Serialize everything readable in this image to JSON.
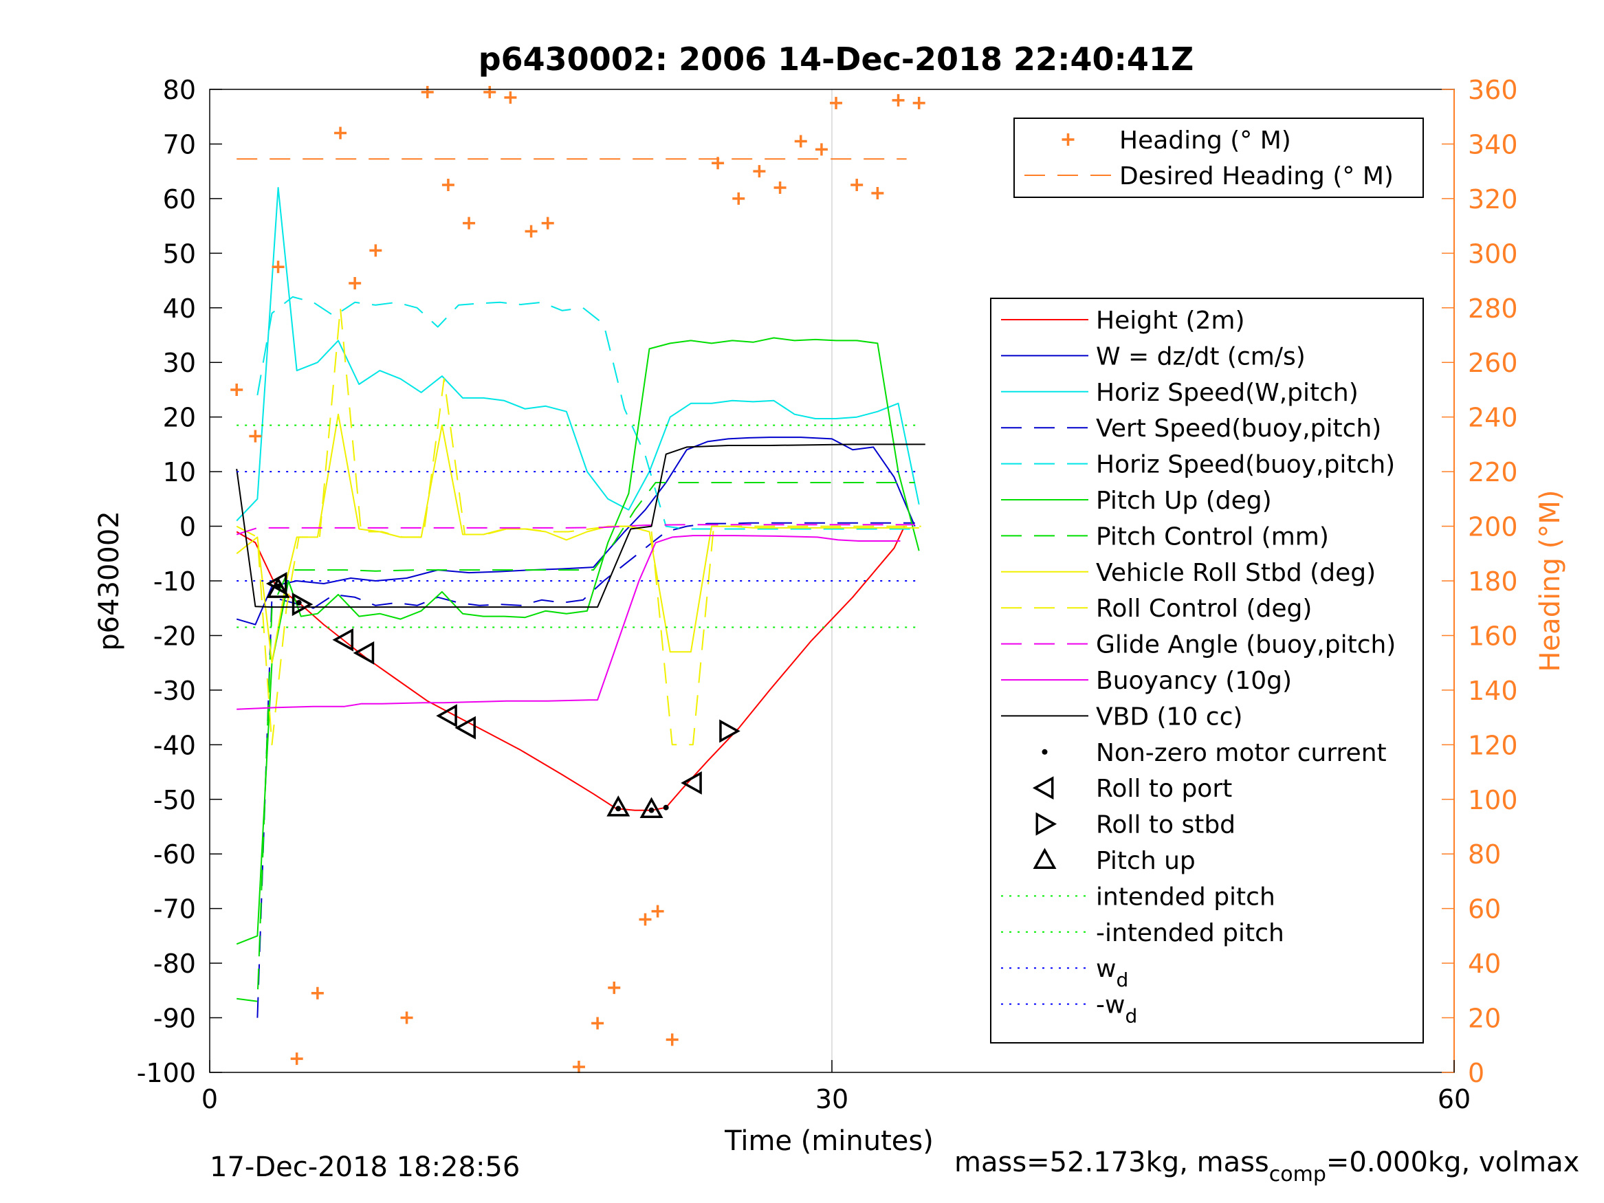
{
  "chart_data": {
    "type": "line",
    "title": "p6430002:  2006 14-Dec-2018 22:40:41Z",
    "xlabel": "Time (minutes)",
    "ylabel": "p6430002",
    "y2label": "Heading (°M)",
    "xlim": [
      0,
      60
    ],
    "ylim": [
      -100,
      80
    ],
    "y2lim": [
      0,
      360
    ],
    "xticks": [
      0,
      30,
      60
    ],
    "yticks": [
      -100,
      -90,
      -80,
      -70,
      -60,
      -50,
      -40,
      -30,
      -20,
      -10,
      0,
      10,
      20,
      30,
      40,
      50,
      60,
      70,
      80
    ],
    "y2ticks": [
      0,
      20,
      40,
      60,
      80,
      100,
      120,
      140,
      160,
      180,
      200,
      220,
      240,
      260,
      280,
      300,
      320,
      340,
      360
    ],
    "grid": "x",
    "colors": {
      "axis2": "#ff7f27",
      "heading": "#ff7f27"
    },
    "legend_top": {
      "placement": "top-right",
      "entries": [
        {
          "label": "Heading (° M)",
          "color": "#ff7f27",
          "style": "plus"
        },
        {
          "label": "Desired Heading (° M)",
          "color": "#ff7f27",
          "style": "dash"
        }
      ]
    },
    "legend_main": {
      "placement": "right",
      "entries": [
        {
          "label": "Height (2m)",
          "color": "#ff0000",
          "style": "solid"
        },
        {
          "label": "W = dz/dt (cm/s)",
          "color": "#0000cc",
          "style": "solid"
        },
        {
          "label": "Horiz Speed(W,pitch)",
          "color": "#00e5e5",
          "style": "solid"
        },
        {
          "label": "Vert Speed(buoy,pitch)",
          "color": "#0000cc",
          "style": "dash"
        },
        {
          "label": "Horiz Speed(buoy,pitch)",
          "color": "#00e5e5",
          "style": "dash"
        },
        {
          "label": "Pitch Up (deg)",
          "color": "#00dd00",
          "style": "solid"
        },
        {
          "label": "Pitch Control (mm)",
          "color": "#00dd00",
          "style": "dash"
        },
        {
          "label": "Vehicle Roll Stbd (deg)",
          "color": "#f0f000",
          "style": "solid"
        },
        {
          "label": "Roll Control (deg)",
          "color": "#f0f000",
          "style": "dash"
        },
        {
          "label": "Glide Angle (buoy,pitch)",
          "color": "#ee00ee",
          "style": "dash"
        },
        {
          "label": "Buoyancy (10g)",
          "color": "#ee00ee",
          "style": "solid"
        },
        {
          "label": "VBD (10 cc)",
          "color": "#000000",
          "style": "solid"
        },
        {
          "label": "Non-zero motor current",
          "color": "#000000",
          "style": "dot"
        },
        {
          "label": "Roll to port",
          "color": "#000000",
          "style": "tri-left"
        },
        {
          "label": "Roll to stbd",
          "color": "#000000",
          "style": "tri-right"
        },
        {
          "label": "Pitch up",
          "color": "#000000",
          "style": "tri-up"
        },
        {
          "label": "intended pitch",
          "color": "#00ee00",
          "style": "dotted"
        },
        {
          "label": "-intended pitch",
          "color": "#00ee00",
          "style": "dotted"
        },
        {
          "label": "w",
          "sub": "d",
          "color": "#0000ff",
          "style": "dotted"
        },
        {
          "label": "-w",
          "sub": "d",
          "color": "#0000ff",
          "style": "dotted"
        }
      ]
    },
    "series": [
      {
        "name": "Height (2m)",
        "axis": "left",
        "color": "#ff0000",
        "style": "solid",
        "x": [
          1.3,
          2.2,
          3.2,
          4.3,
          5.5,
          6.5,
          7.5,
          9,
          10.5,
          12,
          13.5,
          15,
          17,
          18.5,
          19.6,
          20.5,
          21.3,
          22,
          22.8,
          24,
          25.5,
          27,
          29,
          31,
          33,
          33.5
        ],
        "y": [
          -1,
          -3,
          -11,
          -14,
          -18,
          -21,
          -24,
          -28,
          -32,
          -35,
          -38,
          -41,
          -45.5,
          -49,
          -51.7,
          -52,
          -52,
          -51.5,
          -48,
          -43,
          -37,
          -30,
          -21,
          -13,
          -4,
          0
        ]
      },
      {
        "name": "W = dz/dt (cm/s)",
        "axis": "left",
        "color": "#0000cc",
        "style": "solid",
        "x": [
          1.3,
          2.2,
          3.0,
          4.2,
          5.5,
          6.8,
          8.0,
          9.5,
          11.0,
          12.5,
          14.0,
          15.5,
          17.0,
          18.5,
          20.0,
          21.0,
          22.0,
          23.0,
          24.0,
          25.0,
          26.0,
          27.0,
          28.5,
          30.0,
          31.0,
          32.0,
          33.0,
          34.0
        ],
        "y": [
          -17,
          -18,
          -11,
          -10,
          -10.5,
          -9.5,
          -10,
          -9.5,
          -8,
          -8.5,
          -8.3,
          -8,
          -7.8,
          -7.5,
          -1,
          3,
          8,
          14,
          15.5,
          16,
          16.2,
          16.3,
          16.3,
          16,
          14,
          14.5,
          9,
          0
        ]
      },
      {
        "name": "Horiz Speed(W,pitch)",
        "axis": "left",
        "color": "#00e5e5",
        "style": "solid",
        "x": [
          1.3,
          2.3,
          3.3,
          4.2,
          5.2,
          6.2,
          7.2,
          8.2,
          9.2,
          10.2,
          11.2,
          12.2,
          13.2,
          14.2,
          15.2,
          16.2,
          17.2,
          18.2,
          19.2,
          20.2,
          21.2,
          22.2,
          23.2,
          24.2,
          25.2,
          26.2,
          27.2,
          28.2,
          29.2,
          30.2,
          31.2,
          32.2,
          33.2,
          34.2
        ],
        "y": [
          1,
          5,
          62,
          28.5,
          30,
          34,
          26,
          28.5,
          27,
          24.5,
          27.5,
          23.5,
          23.5,
          23,
          21.5,
          22,
          21,
          10,
          5,
          3,
          10,
          20,
          22.5,
          22.5,
          23,
          22.8,
          23,
          20.5,
          19.7,
          19.7,
          20,
          21,
          22.5,
          4
        ]
      },
      {
        "name": "Vert Speed(buoy,pitch)",
        "axis": "left",
        "color": "#0000cc",
        "style": "dash",
        "x": [
          2.3,
          3.0,
          4.0,
          5.0,
          6.0,
          7.0,
          8.0,
          9.0,
          10.0,
          11.0,
          12.0,
          13.0,
          14.0,
          15.0,
          16.0,
          17.0,
          18.0,
          19.0,
          20.0,
          21.0,
          22.0,
          23.0,
          24.0,
          25.0,
          26.0,
          27.0,
          28.0,
          30.0,
          32.0,
          34.0
        ],
        "y": [
          -90,
          -13,
          -14,
          -15,
          -12.5,
          -13,
          -14.5,
          -14,
          -14.5,
          -13,
          -14,
          -14.5,
          -14.3,
          -14.5,
          -13.5,
          -14,
          -13.5,
          -10,
          -7,
          -4,
          -1,
          0,
          0.5,
          0.5,
          0.6,
          0.6,
          0.6,
          0.6,
          0.6,
          0.6
        ]
      },
      {
        "name": "Horiz Speed(buoy,pitch)",
        "axis": "left",
        "color": "#00e5e5",
        "style": "dash",
        "x": [
          2.3,
          3.0,
          4.0,
          5.0,
          6.0,
          7.0,
          8.0,
          9.0,
          10.0,
          11.0,
          12.0,
          13.0,
          14.0,
          15.0,
          16.0,
          17.0,
          18.0,
          19.0,
          20.0,
          21.0,
          22.0,
          23.0,
          24.0,
          25.0,
          26.0,
          27.0,
          28.0,
          30.0,
          32.0,
          34.0
        ],
        "y": [
          24,
          39,
          42,
          41,
          38.5,
          41,
          40.5,
          41,
          40,
          36.5,
          40.5,
          40.8,
          41,
          40.6,
          41,
          39.5,
          40,
          37,
          21.5,
          13,
          0,
          -0.5,
          -0.5,
          -0.5,
          -0.5,
          -0.5,
          -0.5,
          -0.5,
          -0.5,
          -0.5
        ]
      },
      {
        "name": "Pitch Up (deg)",
        "axis": "left",
        "color": "#00dd00",
        "style": "solid",
        "x": [
          1.3,
          2.3,
          3.0,
          3.8,
          4.4,
          5.2,
          6.2,
          7.2,
          8.2,
          9.2,
          10.2,
          11.2,
          12.2,
          13.2,
          14.2,
          15.2,
          16.2,
          17.2,
          18.2,
          19.2,
          20.2,
          21.2,
          22.2,
          23.2,
          24.2,
          25.2,
          26.2,
          27.2,
          28.2,
          29.2,
          30.2,
          31.2,
          32.2,
          33.2,
          34.2
        ],
        "y": [
          -76.5,
          -75,
          -25,
          -10,
          -16.5,
          -16,
          -12.5,
          -16.5,
          -16,
          -17,
          -15.5,
          -12,
          -16,
          -16.5,
          -16.5,
          -16.7,
          -15.5,
          -16,
          -15.5,
          -3,
          6,
          32.5,
          33.5,
          34,
          33.5,
          34,
          33.7,
          34.5,
          34,
          34.2,
          34,
          34,
          33.5,
          10,
          -4.5
        ]
      },
      {
        "name": "Pitch Control (mm)",
        "axis": "left",
        "color": "#00dd00",
        "style": "dash",
        "x": [
          1.3,
          2.3,
          3.0,
          3.8,
          5.0,
          6.5,
          8.0,
          10.0,
          12.0,
          14.0,
          16.0,
          17.5,
          18.5,
          19.5,
          20.5,
          21.5,
          23.0,
          25.0,
          27.0,
          29.0,
          31.0,
          33.0,
          34.0
        ],
        "y": [
          -86.5,
          -87,
          -15,
          -8,
          -8,
          -8,
          -8.2,
          -8,
          -8,
          -8,
          -8,
          -8,
          -8,
          -3,
          3,
          8,
          8,
          8,
          8,
          8,
          8,
          8,
          8
        ]
      },
      {
        "name": "Vehicle Roll Stbd (deg)",
        "axis": "left",
        "color": "#f0f000",
        "style": "solid",
        "x": [
          1.3,
          2.3,
          3.0,
          3.7,
          4.2,
          5.2,
          6.2,
          7.2,
          8.2,
          9.2,
          10.2,
          11.2,
          12.2,
          13.2,
          14.2,
          15.2,
          16.2,
          17.2,
          18.2,
          19.2,
          20.2,
          21.2,
          22.2,
          23.2,
          24.2,
          25.2,
          26.2,
          28.2,
          30.2,
          32.2,
          34.2
        ],
        "y": [
          -5,
          -2,
          -25,
          -10,
          -2,
          -2,
          20.5,
          -0.5,
          -1,
          -2,
          -2,
          18.5,
          -1.5,
          -1.5,
          -0.5,
          -0.5,
          -1,
          -2.5,
          -1,
          0,
          0,
          -1,
          -23,
          -23,
          0,
          0,
          -0.3,
          -0.3,
          -0.3,
          -0.3,
          -0.3
        ]
      },
      {
        "name": "Roll Control (deg)",
        "axis": "left",
        "color": "#f0f000",
        "style": "dash",
        "x": [
          1.3,
          2.3,
          3.0,
          3.7,
          4.3,
          5.3,
          6.3,
          7.3,
          8.3,
          9.3,
          10.3,
          11.3,
          12.3,
          13.3,
          14.3,
          15.3,
          16.3,
          17.3,
          18.3,
          19.3,
          20.3,
          21.3,
          22.3,
          23.3,
          24.3,
          25.3,
          27.3,
          29.3,
          31.3,
          33.3,
          34.3
        ],
        "y": [
          0,
          -2,
          -40,
          -15,
          -2,
          -2,
          40,
          -1,
          -1,
          -2,
          -2,
          27,
          -1.5,
          -1.5,
          -0.5,
          -0.5,
          -1,
          -1,
          -0.5,
          0,
          0,
          -1,
          -40,
          -40,
          0,
          0,
          0,
          0,
          0,
          0,
          0
        ]
      },
      {
        "name": "Glide Angle (buoy,pitch)",
        "axis": "left",
        "color": "#ee00ee",
        "style": "dash",
        "x": [
          1.3,
          2.3,
          3.3,
          5.0,
          7.0,
          9.0,
          11.0,
          13.0,
          15.0,
          17.0,
          19.0,
          21.0,
          23.0,
          25.0,
          27.0,
          29.0,
          31.0,
          33.0,
          34.0
        ],
        "y": [
          -1.5,
          -0.3,
          -0.3,
          -0.3,
          -0.3,
          -0.3,
          -0.3,
          -0.3,
          -0.3,
          -0.3,
          -0.2,
          0.2,
          0.3,
          0.3,
          0.3,
          0.3,
          0.3,
          0.3,
          0.3
        ]
      },
      {
        "name": "Buoyancy (10g)",
        "axis": "left",
        "color": "#ee00ee",
        "style": "solid",
        "x": [
          1.3,
          3.2,
          5.0,
          6.5,
          7.3,
          8.3,
          9.3,
          10.3,
          11.3,
          12.3,
          13.3,
          14.3,
          15.3,
          16.3,
          17.3,
          18.3,
          18.7,
          20.7,
          21.5,
          22.3,
          23.3,
          25.3,
          27.3,
          29.3,
          30.3,
          31.3,
          33.3
        ],
        "y": [
          -33.5,
          -33.2,
          -33,
          -33,
          -32.5,
          -32.5,
          -32.4,
          -32.3,
          -32.3,
          -32.2,
          -32.1,
          -32,
          -32,
          -32,
          -31.9,
          -31.8,
          -31.8,
          -10,
          -3,
          -2,
          -1.7,
          -1.7,
          -1.8,
          -2,
          -2.5,
          -2.7,
          -2.7
        ]
      },
      {
        "name": "VBD (10 cc)",
        "axis": "left",
        "color": "#000000",
        "style": "solid",
        "x": [
          1.3,
          2.2,
          3.0,
          4.0,
          6.0,
          8.0,
          10.0,
          12.0,
          14.0,
          16.0,
          18.0,
          18.7,
          20.3,
          21.3,
          22.0,
          23.0,
          25.0,
          27.0,
          29.0,
          31.0,
          33.0,
          34.5
        ],
        "y": [
          10.5,
          -14.7,
          -14.8,
          -14.8,
          -14.8,
          -14.8,
          -14.8,
          -14.8,
          -14.8,
          -14.8,
          -14.8,
          -14.8,
          -0.5,
          0,
          13.2,
          14.5,
          14.8,
          14.8,
          14.9,
          15,
          15,
          15
        ]
      },
      {
        "name": "Heading (° M)",
        "axis": "right",
        "color": "#ff7f27",
        "style": "plus",
        "x": [
          1.3,
          2.2,
          3.3,
          4.2,
          5.2,
          6.3,
          7.0,
          8.0,
          9.5,
          10.5,
          11.5,
          12.5,
          13.5,
          14.5,
          15.5,
          16.3,
          17.8,
          18.7,
          19.5,
          21.0,
          21.6,
          22.3,
          24.5,
          25.5,
          26.5,
          27.5,
          28.5,
          29.5,
          30.2,
          31.2,
          32.2,
          33.2,
          34.2
        ],
        "y": [
          250,
          233,
          295,
          5,
          29,
          344,
          289,
          301,
          20,
          359,
          325,
          311,
          359,
          357,
          308,
          311,
          2,
          18,
          31,
          56,
          59,
          12,
          333,
          320,
          330,
          324,
          341,
          338,
          355,
          325,
          322,
          356,
          355
        ]
      },
      {
        "name": "Desired Heading (° M)",
        "axis": "right",
        "color": "#ff7f27",
        "style": "dash",
        "x": [
          1.3,
          33.6
        ],
        "y": [
          334.5,
          334.5
        ]
      },
      {
        "name": "intended pitch",
        "axis": "left",
        "color": "#00ee00",
        "style": "dotted",
        "x": [
          1.3,
          34.3
        ],
        "y": [
          18.5,
          18.5
        ]
      },
      {
        "name": "-intended pitch",
        "axis": "left",
        "color": "#00ee00",
        "style": "dotted",
        "x": [
          1.3,
          34.3
        ],
        "y": [
          -18.5,
          -18.5
        ]
      },
      {
        "name": "w_d",
        "axis": "left",
        "color": "#0000ff",
        "style": "dotted",
        "x": [
          1.3,
          34.3
        ],
        "y": [
          10,
          10
        ]
      },
      {
        "name": "-w_d",
        "axis": "left",
        "color": "#0000ff",
        "style": "dotted",
        "x": [
          1.3,
          34.3
        ],
        "y": [
          -10,
          -10
        ]
      }
    ],
    "markers": {
      "motor_current": {
        "x": [
          3.3,
          4.3,
          19.7,
          21.3,
          22.0
        ],
        "y": [
          -11,
          -14,
          -51.7,
          -52,
          -51.5
        ]
      },
      "roll_to_port": {
        "x": [
          3.3,
          6.5,
          7.5,
          11.5,
          12.4,
          23.3
        ],
        "y": [
          -10.5,
          -20.8,
          -23.2,
          -34.7,
          -36.9,
          -47
        ]
      },
      "roll_to_stbd": {
        "x": [
          4.4,
          25.0
        ],
        "y": [
          -14.3,
          -37.5
        ]
      },
      "pitch_up": {
        "x": [
          3.3,
          19.7,
          21.3
        ],
        "y": [
          -11.5,
          -51.5,
          -51.8
        ]
      }
    }
  },
  "footer": {
    "timestamp": "17-Dec-2018 18:28:56",
    "mass_text_1": "mass=52.173kg, mass",
    "mass_sub": "comp",
    "mass_text_2": "=0.000kg, volmax"
  }
}
